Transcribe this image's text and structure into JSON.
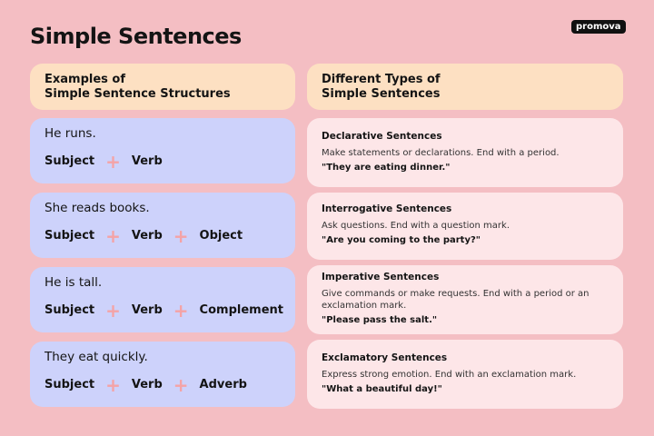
{
  "title": "Simple Sentences",
  "logo": "promova",
  "colors": {
    "background": "#f4bec3",
    "header": "#fde0c2",
    "structure_card": "#cdd2fb",
    "type_card": "#fde6e8",
    "plus": "#f4a3a6"
  },
  "left_header": [
    "Examples of",
    "Simple Sentence Structures"
  ],
  "right_header": [
    "Different Types of",
    "Simple Sentences"
  ],
  "examples": [
    {
      "sentence": "He runs.",
      "parts": [
        "Subject",
        "Verb"
      ]
    },
    {
      "sentence": "She reads books.",
      "parts": [
        "Subject",
        "Verb",
        "Object"
      ]
    },
    {
      "sentence": "He is tall.",
      "parts": [
        "Subject",
        "Verb",
        "Complement"
      ]
    },
    {
      "sentence": "They eat quickly.",
      "parts": [
        "Subject",
        "Verb",
        "Adverb"
      ]
    }
  ],
  "types": [
    {
      "name": "Declarative Sentences",
      "desc": "Make statements or declarations. End with a period.",
      "example": "\"They are eating dinner.\""
    },
    {
      "name": "Interrogative Sentences",
      "desc": "Ask questions. End with a question mark.",
      "example": "\"Are you coming to the party?\""
    },
    {
      "name": "Imperative Sentences",
      "desc": "Give commands or make requests. End with a period or an exclamation mark.",
      "example": "\"Please pass the salt.\""
    },
    {
      "name": "Exclamatory Sentences",
      "desc": "Express strong emotion. End with an exclamation mark.",
      "example": "\"What a beautiful day!\""
    }
  ]
}
